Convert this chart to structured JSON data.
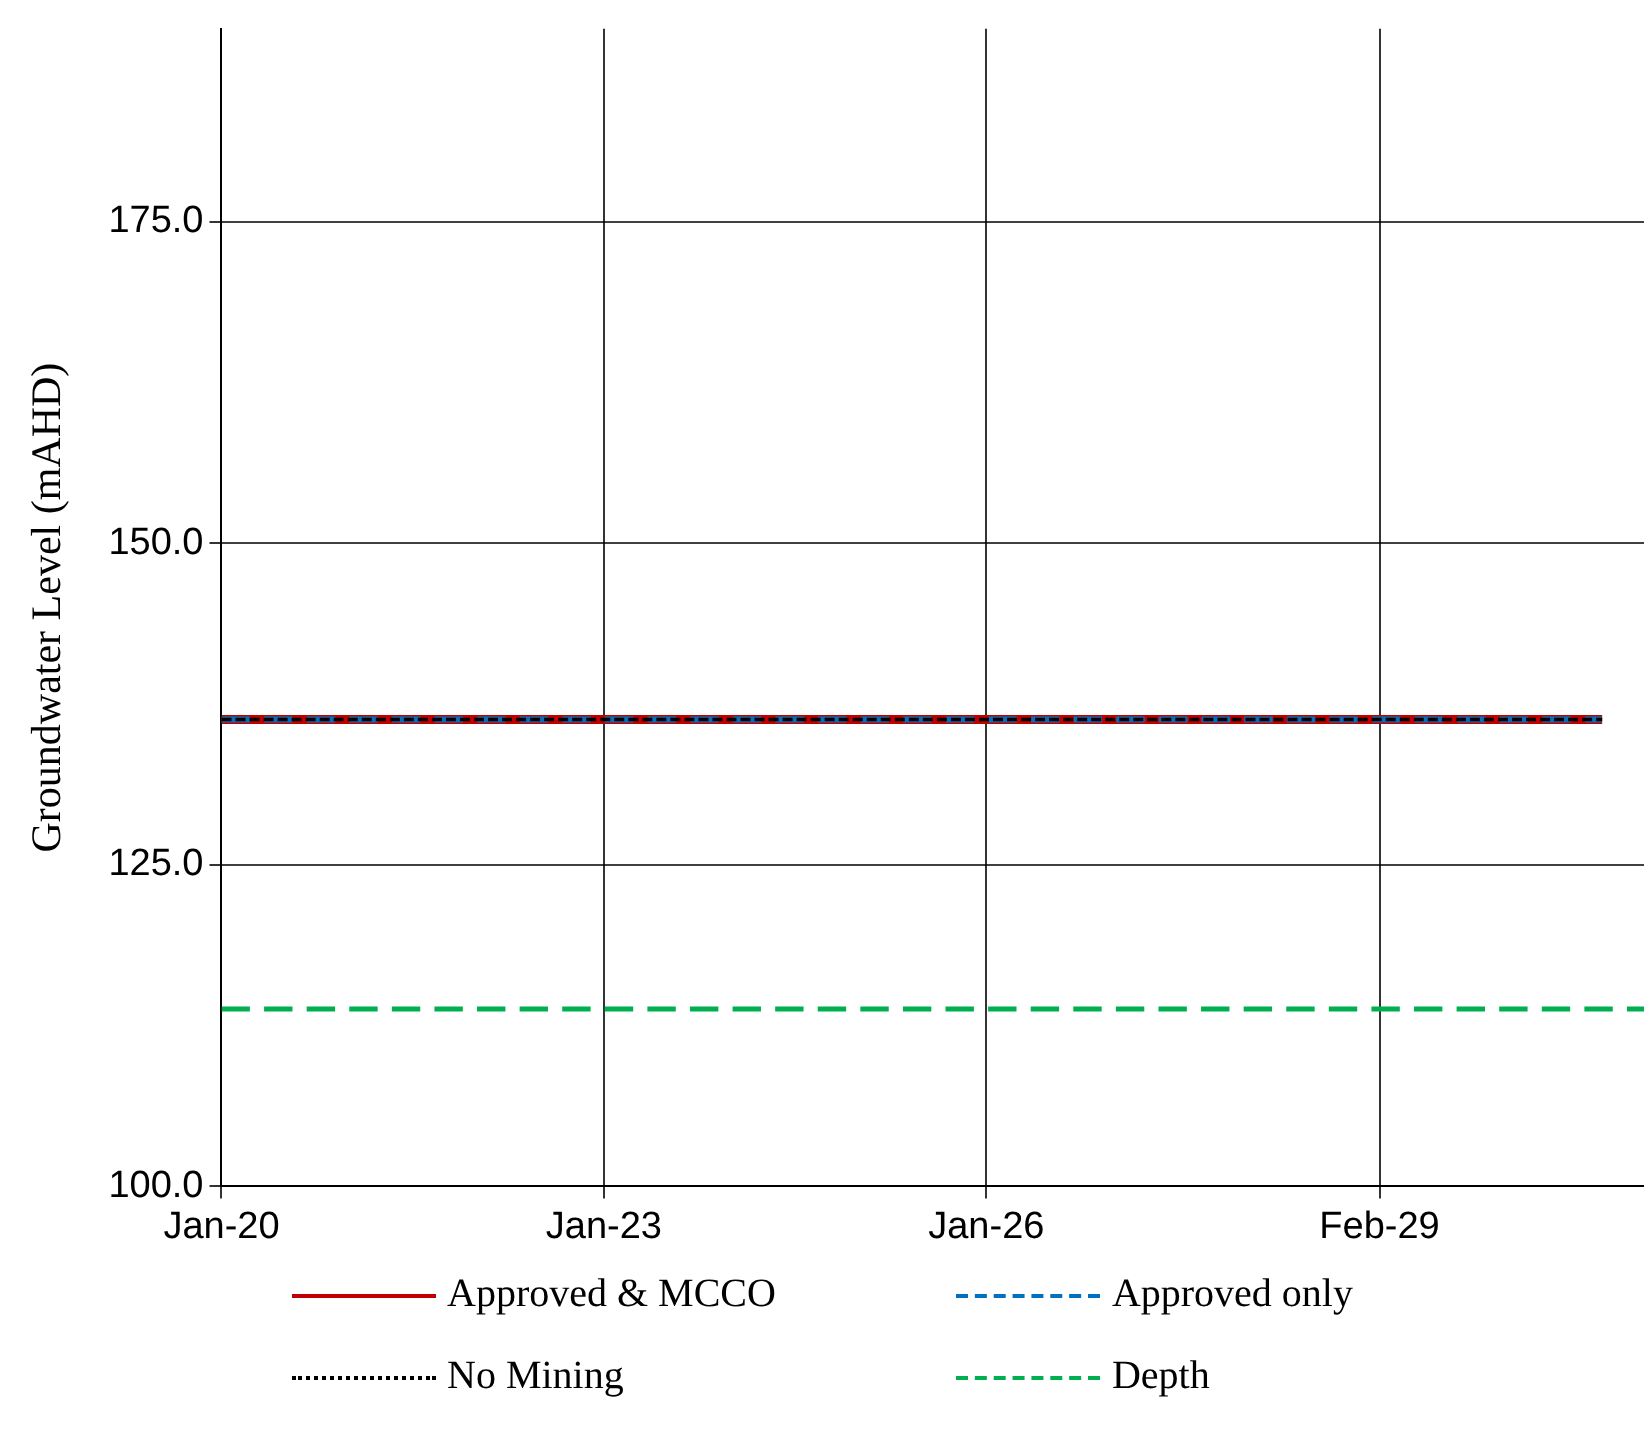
{
  "chart_data": {
    "type": "line",
    "ylabel": "Groundwater Level (mAHD)",
    "xlim": [
      "2020-01-01",
      "2031-03-01"
    ],
    "xticks": [
      {
        "value": "2020-01-01",
        "label": "Jan-20"
      },
      {
        "value": "2023-01-01",
        "label": "Jan-23"
      },
      {
        "value": "2026-01-01",
        "label": "Jan-26"
      },
      {
        "value": "2029-02-01",
        "label": "Feb-29"
      }
    ],
    "ylim": [
      100,
      190
    ],
    "yticks": [
      {
        "value": 100,
        "label": "100.0"
      },
      {
        "value": 125,
        "label": "125.0"
      },
      {
        "value": 150,
        "label": "150.0"
      },
      {
        "value": 175,
        "label": "175.0"
      }
    ],
    "grid": true,
    "legend": "bottom",
    "marker": "none",
    "series": [
      {
        "name": "Approved & MCCO",
        "color": "#c00000",
        "line_style": "solid",
        "x": [
          "2020-01-01",
          "2030-11-01"
        ],
        "values": [
          136.3,
          136.3
        ]
      },
      {
        "name": "Approved only",
        "color": "#0070c0",
        "line_style": "dashed",
        "x": [
          "2020-01-01",
          "2030-11-01"
        ],
        "values": [
          136.3,
          136.3
        ]
      },
      {
        "name": "No Mining",
        "color": "#000000",
        "line_style": "dotted",
        "x": [
          "2020-01-01",
          "2030-11-01"
        ],
        "values": [
          136.3,
          136.3
        ]
      },
      {
        "name": "Depth",
        "color": "#00b050",
        "line_style": "dashed",
        "x": [
          "2020-01-01",
          "2031-03-01"
        ],
        "values": [
          113.8,
          113.8
        ]
      }
    ]
  }
}
